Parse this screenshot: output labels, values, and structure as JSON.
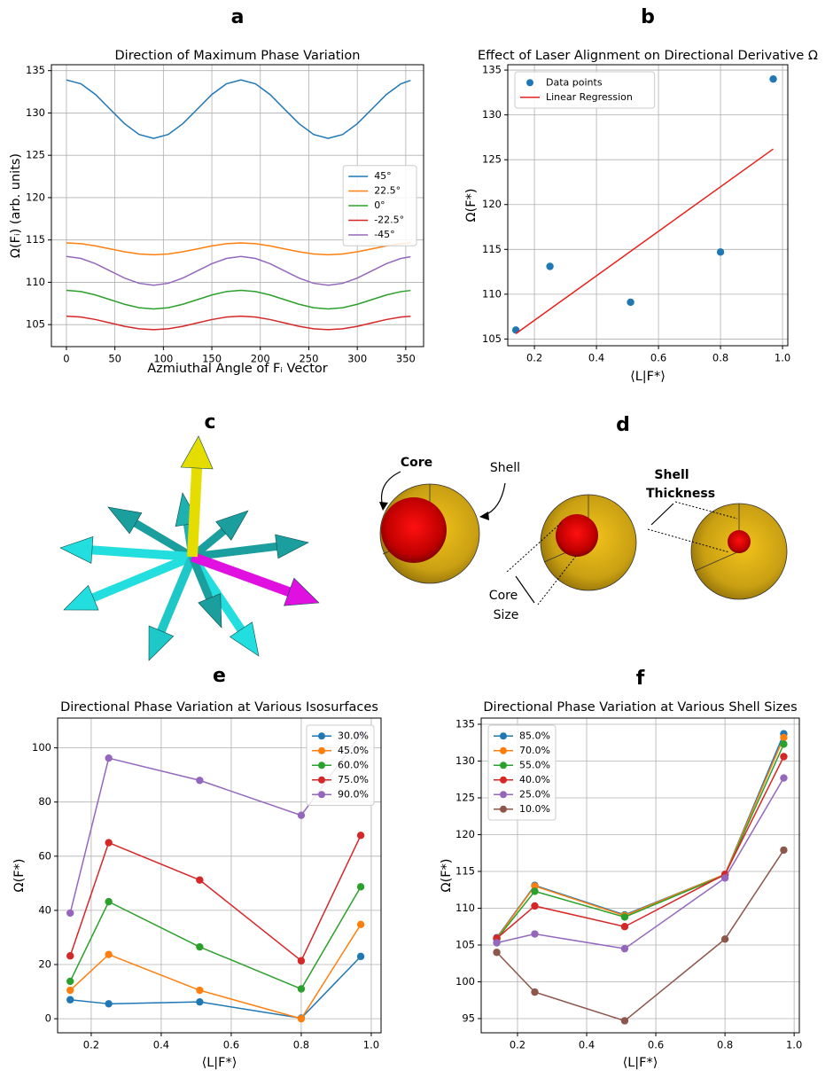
{
  "chart_data": [
    {
      "label": "a",
      "type": "line",
      "title": "Direction of Maximum Phase Variation",
      "x_label": "Azmiuthal Angle of Fᵢ Vector",
      "y_label": "Ω(Fᵢ) (arb. units)",
      "x": [
        0,
        15,
        30,
        45,
        60,
        75,
        90,
        105,
        120,
        135,
        150,
        165,
        180,
        195,
        210,
        225,
        240,
        255,
        270,
        285,
        300,
        315,
        330,
        345,
        355
      ],
      "xlim": [
        -15.5,
        368.4
      ],
      "xticks": [
        0,
        50,
        100,
        150,
        200,
        250,
        300,
        350
      ],
      "ylim": [
        102.4,
        135.7
      ],
      "yticks": [
        105,
        110,
        115,
        120,
        125,
        130,
        135
      ],
      "grid": true,
      "legend": "center right",
      "series": [
        {
          "name": "45°",
          "color": "#1f77b4",
          "line": true,
          "marker": false,
          "values": [
            133.9,
            133.44,
            132.18,
            130.45,
            128.73,
            127.46,
            127.0,
            127.46,
            128.73,
            130.45,
            132.18,
            133.44,
            133.9,
            133.44,
            132.18,
            130.45,
            128.73,
            127.46,
            127.0,
            127.46,
            128.73,
            130.45,
            132.18,
            133.44,
            133.85
          ]
        },
        {
          "name": "22.5°",
          "color": "#ff7f0e",
          "line": true,
          "marker": false,
          "values": [
            114.65,
            114.56,
            114.3,
            113.95,
            113.6,
            113.34,
            113.25,
            113.34,
            113.6,
            113.95,
            114.3,
            114.56,
            114.65,
            114.56,
            114.3,
            113.95,
            113.6,
            113.34,
            113.25,
            113.34,
            113.6,
            113.95,
            114.3,
            114.56,
            114.64
          ]
        },
        {
          "name": "0°",
          "color": "#2ca02c",
          "line": true,
          "marker": false,
          "values": [
            109.05,
            108.9,
            108.5,
            107.95,
            107.4,
            107.0,
            106.85,
            107.0,
            107.4,
            107.95,
            108.5,
            108.9,
            109.05,
            108.9,
            108.5,
            107.95,
            107.4,
            107.0,
            106.85,
            107.0,
            107.4,
            107.95,
            108.5,
            108.9,
            109.03
          ]
        },
        {
          "name": "-22.5°",
          "color": "#d62728",
          "line": true,
          "marker": false,
          "values": [
            106.0,
            105.89,
            105.6,
            105.2,
            104.8,
            104.51,
            104.4,
            104.51,
            104.8,
            105.2,
            105.6,
            105.89,
            106.0,
            105.89,
            105.6,
            105.2,
            104.8,
            104.51,
            104.4,
            104.51,
            104.8,
            105.2,
            105.6,
            105.89,
            105.99
          ]
        },
        {
          "name": "-45°",
          "color": "#9467bd",
          "line": true,
          "marker": false,
          "values": [
            113.05,
            112.82,
            112.2,
            111.35,
            110.5,
            109.88,
            109.65,
            109.88,
            110.5,
            111.35,
            112.2,
            112.82,
            113.05,
            112.82,
            112.2,
            111.35,
            110.5,
            109.88,
            109.65,
            109.88,
            110.5,
            111.35,
            112.2,
            112.82,
            113.02
          ]
        }
      ]
    },
    {
      "label": "b",
      "type": "scatter",
      "title": "Effect of Laser Alignment on Directional Derivative Ω",
      "x_label": "⟨L|F*⟩",
      "y_label": "Ω(F*)",
      "xlim": [
        0.114,
        1.017
      ],
      "xticks": [
        0.2,
        0.4,
        0.6,
        0.8,
        {
          "value": 1,
          "label": "1.0"
        }
      ],
      "ylim": [
        104.25,
        135.6
      ],
      "yticks": [
        105,
        110,
        115,
        120,
        125,
        130,
        135
      ],
      "grid": true,
      "legend": "upper left",
      "series": [
        {
          "name": "Data points",
          "color": "#1f77b4",
          "line": false,
          "marker": true,
          "x": [
            0.14,
            0.25,
            0.51,
            0.8,
            0.97
          ],
          "values": [
            106,
            113.1,
            109.1,
            114.7,
            134
          ]
        },
        {
          "name": "Linear Regression",
          "color": "#e8211c",
          "line": true,
          "marker": false,
          "x": [
            0.14,
            0.97
          ],
          "values": [
            105.6,
            126.2
          ]
        }
      ]
    },
    {
      "label": "e",
      "type": "line",
      "title": "Directional Phase Variation at Various Isosurfaces",
      "x_label": "⟨L|F*⟩",
      "y_label": "Ω(F*)",
      "x": [
        0.14,
        0.25,
        0.51,
        0.8,
        0.97
      ],
      "xlim": [
        0.104,
        1.028
      ],
      "xticks": [
        0.2,
        0.4,
        0.6,
        0.8,
        {
          "value": 1,
          "label": "1.0"
        }
      ],
      "ylim": [
        -5.2,
        111
      ],
      "yticks": [
        0,
        20,
        40,
        60,
        80,
        100
      ],
      "grid": true,
      "legend": "upper right",
      "series": [
        {
          "name": "30.0%",
          "color": "#1f77b4",
          "line": true,
          "marker": true,
          "values": [
            7,
            5.5,
            6.2,
            0.2,
            23
          ]
        },
        {
          "name": "45.0%",
          "color": "#ff7f0e",
          "line": true,
          "marker": true,
          "values": [
            10.5,
            23.7,
            10.5,
            0,
            34.8
          ]
        },
        {
          "name": "60.0%",
          "color": "#2ca02c",
          "line": true,
          "marker": true,
          "values": [
            13.8,
            43.2,
            26.5,
            11,
            48.7
          ]
        },
        {
          "name": "75.0%",
          "color": "#d62728",
          "line": true,
          "marker": true,
          "values": [
            23.2,
            65,
            51.2,
            21.4,
            67.7
          ]
        },
        {
          "name": "90.0%",
          "color": "#9467bd",
          "line": true,
          "marker": true,
          "values": [
            39,
            96.2,
            88,
            75.1,
            105
          ]
        }
      ]
    },
    {
      "label": "f",
      "type": "line",
      "title": "Directional Phase Variation at Various Shell Sizes",
      "x_label": "⟨L|F*⟩",
      "y_label": "Ω(F*)",
      "x": [
        0.14,
        0.25,
        0.51,
        0.8,
        0.97
      ],
      "xlim": [
        0.095,
        1.015
      ],
      "xticks": [
        0.2,
        0.4,
        0.6,
        0.8,
        {
          "value": 1,
          "label": "1.0"
        }
      ],
      "ylim": [
        93.07,
        135.84
      ],
      "yticks": [
        95,
        100,
        105,
        110,
        115,
        120,
        125,
        130,
        135
      ],
      "grid": true,
      "legend": "upper left",
      "series": [
        {
          "name": "85.0%",
          "color": "#1f77b4",
          "line": true,
          "marker": true,
          "values": [
            106,
            113.1,
            109.1,
            114.6,
            133.7
          ]
        },
        {
          "name": "70.0%",
          "color": "#ff7f0e",
          "line": true,
          "marker": true,
          "values": [
            105.9,
            113,
            109,
            114.6,
            133.2
          ]
        },
        {
          "name": "55.0%",
          "color": "#2ca02c",
          "line": true,
          "marker": true,
          "values": [
            105.8,
            112.3,
            108.8,
            114.5,
            132.3
          ]
        },
        {
          "name": "40.0%",
          "color": "#d62728",
          "line": true,
          "marker": true,
          "values": [
            105.9,
            110.3,
            107.5,
            114.6,
            130.6
          ]
        },
        {
          "name": "25.0%",
          "color": "#9467bd",
          "line": true,
          "marker": true,
          "values": [
            105.3,
            106.5,
            104.5,
            114.1,
            127.7
          ]
        },
        {
          "name": "10.0%",
          "color": "#8c564b",
          "line": true,
          "marker": true,
          "values": [
            104,
            98.6,
            94.7,
            105.8,
            117.9
          ]
        }
      ]
    }
  ],
  "panel_c": {
    "label": "c"
  },
  "panel_d": {
    "label": "d",
    "annotations": [
      "Core",
      "Shell",
      "Shell",
      "Thickness",
      "Core",
      "Size"
    ]
  }
}
